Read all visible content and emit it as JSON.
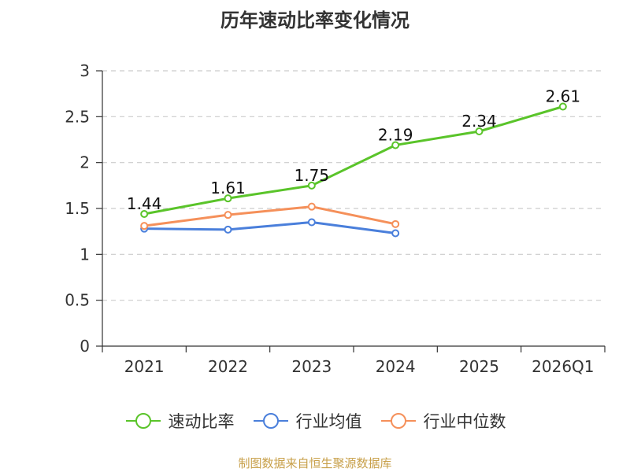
{
  "chart_data": {
    "type": "line",
    "title": "历年速动比率变化情况",
    "categories": [
      "2021",
      "2022",
      "2023",
      "2024",
      "2025",
      "2026Q1"
    ],
    "ylim": [
      0,
      3
    ],
    "yticks": [
      0,
      0.5,
      1,
      1.5,
      2,
      2.5,
      3
    ],
    "ytick_labels": [
      "0",
      "0.5",
      "1",
      "1.5",
      "2",
      "2.5",
      "3"
    ],
    "xlabel": "",
    "ylabel": "",
    "grid": true,
    "legend_position": "bottom-center",
    "series": [
      {
        "name": "速动比率",
        "color": "#5ac42a",
        "values": [
          1.44,
          1.61,
          1.75,
          2.19,
          2.34,
          2.61
        ],
        "labels": [
          "1.44",
          "1.61",
          "1.75",
          "2.19",
          "2.34",
          "2.61"
        ],
        "show_labels": true
      },
      {
        "name": "行业均值",
        "color": "#4a7fdb",
        "values": [
          1.28,
          1.27,
          1.35,
          1.23,
          null,
          null
        ],
        "show_labels": false
      },
      {
        "name": "行业中位数",
        "color": "#f5905a",
        "values": [
          1.31,
          1.43,
          1.52,
          1.33,
          null,
          null
        ],
        "show_labels": false
      }
    ]
  },
  "footer": "制图数据来自恒生聚源数据库"
}
